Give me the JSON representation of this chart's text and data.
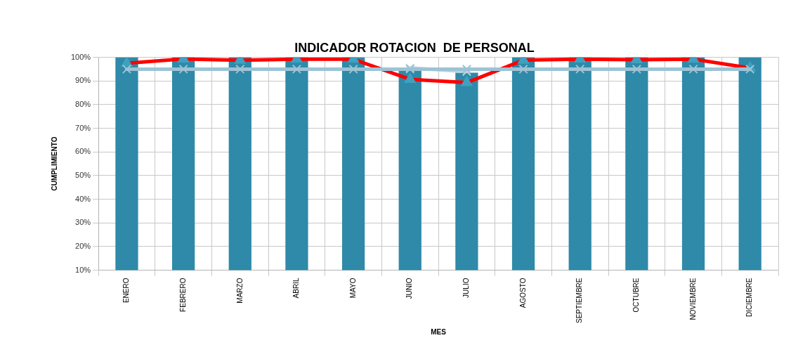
{
  "chart_data": {
    "type": "bar",
    "title": "INDICADOR ROTACION  DE PERSONAL",
    "xlabel": "MES",
    "ylabel": "CUMPLIMIENTO",
    "categories": [
      "ENERO",
      "FEBRERO",
      "MARZO",
      "ABRIL",
      "MAYO",
      "JUNIO",
      "JULIO",
      "AGOSTO",
      "SEPTIEMBRE",
      "OCTUBRE",
      "NOVIEMBRE",
      "DICIEMBRE"
    ],
    "series": [
      {
        "color": "#2e8aa8",
        "values": [
          100,
          100,
          100,
          100,
          100,
          94.5,
          93.5,
          100,
          100,
          100,
          100,
          100
        ]
      },
      {
        "type": "line",
        "color": "#b7d4e0",
        "marker": "cross",
        "values": [
          null,
          null,
          null,
          null,
          null,
          95.5,
          94,
          null,
          null,
          null,
          null,
          null
        ]
      },
      {
        "type": "line",
        "color": "#ff0000",
        "marker": "triangle",
        "values": [
          97.5,
          99.3,
          98.8,
          99.2,
          99.2,
          90.7,
          89.3,
          98.8,
          99.2,
          99,
          99.2,
          95.5
        ]
      },
      {
        "type": "line",
        "color": "#9cc3d5",
        "marker": "cross",
        "values": [
          95,
          95,
          95,
          95,
          95,
          95,
          95,
          95,
          95,
          95,
          95,
          95
        ]
      }
    ],
    "ylim": [
      10,
      100
    ],
    "yticks": [
      {
        "value": 10,
        "label": "10%"
      },
      {
        "value": 20,
        "label": "20%"
      },
      {
        "value": 30,
        "label": "30%"
      },
      {
        "value": 40,
        "label": "40%"
      },
      {
        "value": 50,
        "label": "50%"
      },
      {
        "value": 60,
        "label": "60%"
      },
      {
        "value": 70,
        "label": "70%"
      },
      {
        "value": 80,
        "label": "80%"
      },
      {
        "value": 90,
        "label": "90%"
      },
      {
        "value": 100,
        "label": "100%"
      }
    ],
    "grid": true,
    "legend": false
  }
}
